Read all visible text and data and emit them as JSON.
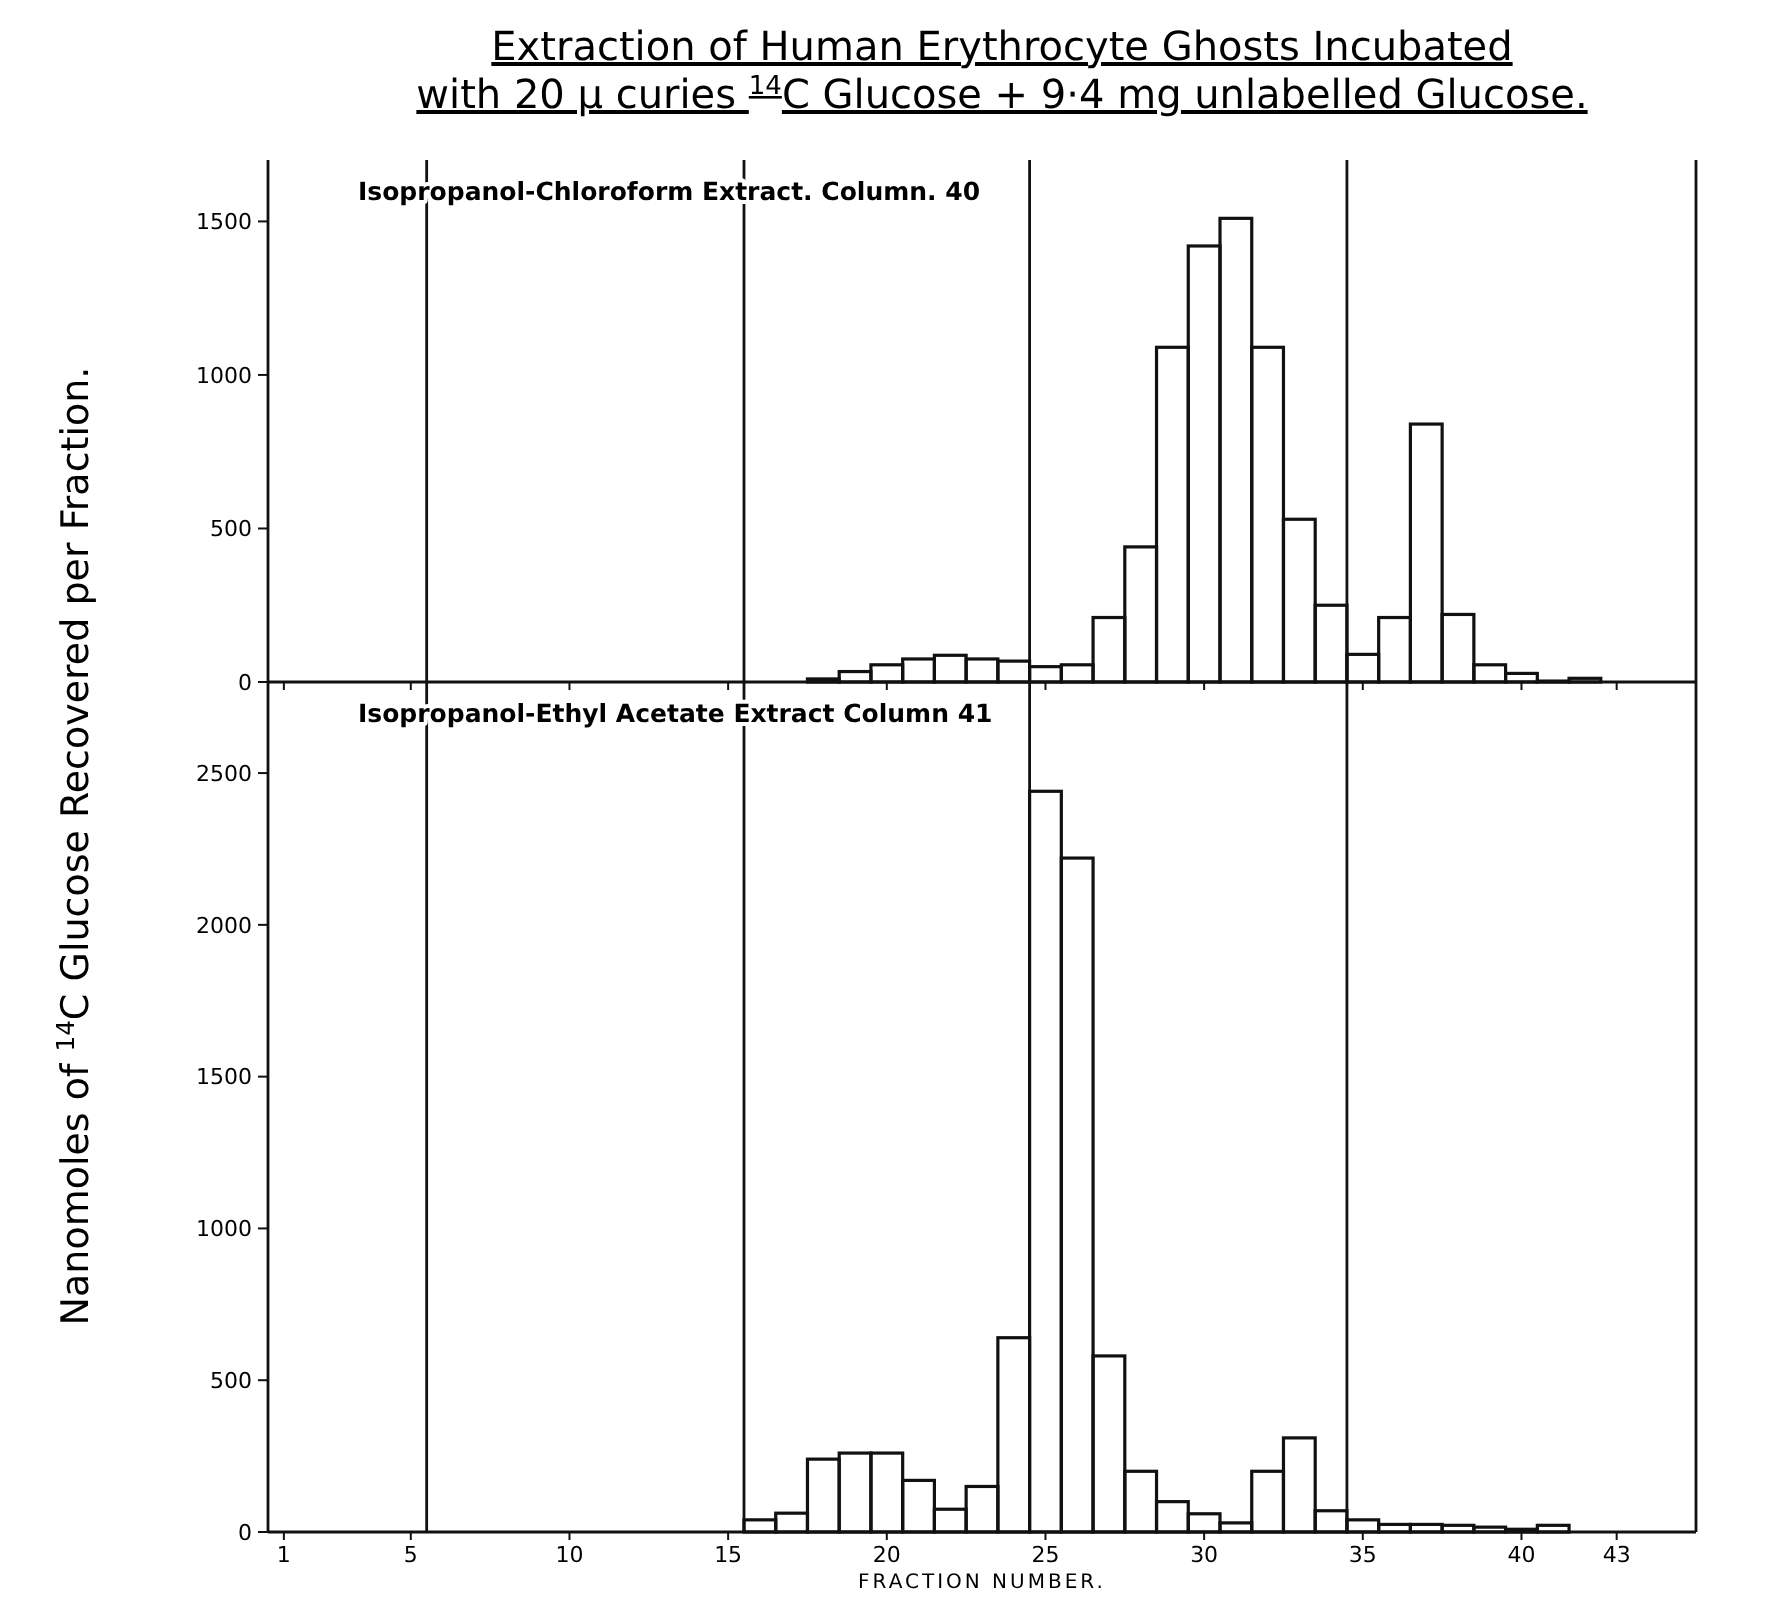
{
  "chart_data": [
    {
      "type": "histogram",
      "title": "Extraction of Human Erythrocyte Ghosts Incubated\nwith 20 µ curies $^{14}$C Glucose + 9·4 mg unlabelled Glucose.",
      "subtitle": "Isopropanol-Chloroform Extract.  Column. 40",
      "ylabel": "Nanomoles of $^{14}$C Glucose Recovered per Fraction.",
      "bins": [
        17.5,
        18.5,
        19.5,
        20.5,
        21.5,
        22.5,
        23.5,
        24.5,
        25.5,
        26.5,
        27.5,
        28.5,
        29.5,
        30.5,
        31.5,
        32.5,
        33.5,
        34.5,
        35.5,
        36.5,
        37.5,
        38.5,
        39.5,
        40.5,
        41.5,
        42.5
      ],
      "values": [
        10,
        34,
        56,
        75,
        87,
        75,
        68,
        50,
        56,
        210,
        440,
        1090,
        1420,
        1510,
        1090,
        530,
        250,
        90,
        210,
        840,
        220,
        56,
        28,
        3,
        12
      ],
      "color": "#111111",
      "xlim": [
        0.5,
        45.5
      ],
      "xticks": [
        1,
        5,
        10,
        15,
        20,
        25,
        30,
        35,
        40,
        43
      ],
      "ylim": [
        0,
        1700
      ],
      "yticks": [
        0,
        500,
        1000,
        1500
      ],
      "tick_labels": "y",
      "ref_lines": [
        {
          "axis": "x",
          "value": 5.5
        },
        {
          "axis": "x",
          "value": 15.5
        },
        {
          "axis": "x",
          "value": 24.5
        },
        {
          "axis": "x",
          "value": 34.5
        }
      ]
    },
    {
      "type": "histogram",
      "subtitle": "Isopropanol-Ethyl Acetate Extract   Column 41",
      "xlabel": "FRACTION NUMBER.",
      "bins": [
        15.5,
        16.5,
        17.5,
        18.5,
        19.5,
        20.5,
        21.5,
        22.5,
        23.5,
        24.5,
        25.5,
        26.5,
        27.5,
        28.5,
        29.5,
        30.5,
        31.5,
        32.5,
        33.5,
        34.5,
        35.5,
        36.5,
        37.5,
        38.5,
        39.5,
        40.5,
        41.5
      ],
      "values": [
        40,
        62,
        240,
        260,
        260,
        170,
        75,
        150,
        640,
        2440,
        2220,
        580,
        200,
        100,
        60,
        30,
        200,
        310,
        70,
        40,
        25,
        25,
        22,
        16,
        9,
        22
      ],
      "color": "#111111",
      "xlim": [
        0.5,
        45.5
      ],
      "xticks": [
        1,
        5,
        10,
        15,
        20,
        25,
        30,
        35,
        40,
        43
      ],
      "ylim": [
        0,
        2800
      ],
      "yticks": [
        0,
        500,
        1000,
        1500,
        2000,
        2500
      ],
      "ref_lines": [
        {
          "axis": "x",
          "value": 5.5
        },
        {
          "axis": "x",
          "value": 15.5
        },
        {
          "axis": "x",
          "value": 24.5
        },
        {
          "axis": "x",
          "value": 34.5
        }
      ]
    }
  ]
}
